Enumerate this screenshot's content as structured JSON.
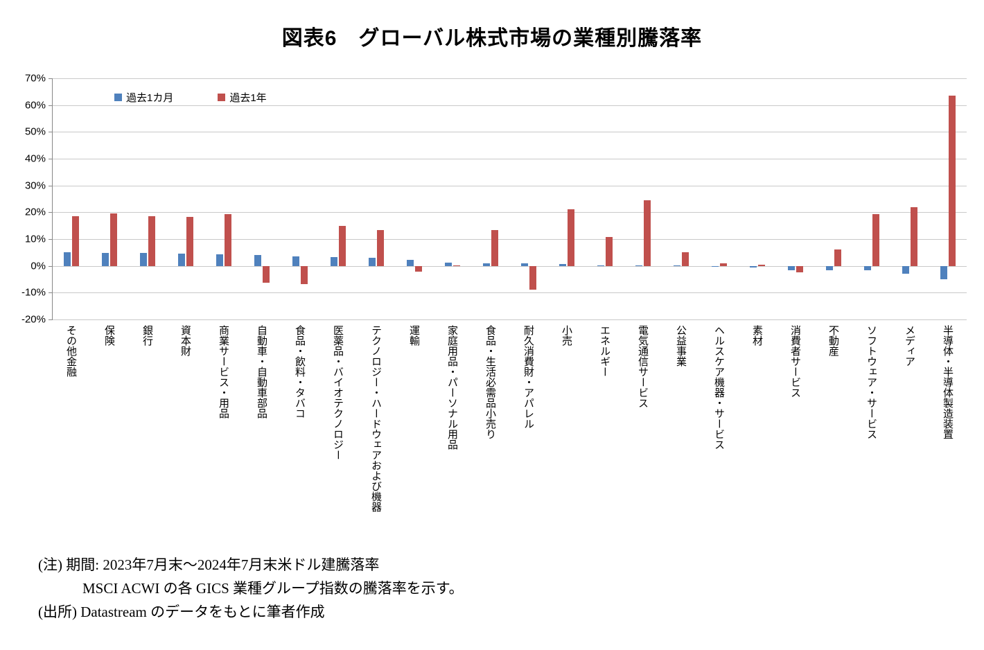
{
  "title": "図表6　グローバル株式市場の業種別騰落率",
  "chart_data": {
    "type": "bar",
    "title": "図表6　グローバル株式市場の業種別騰落率",
    "ylim": [
      -20,
      70
    ],
    "y_ticks": [
      "70%",
      "60%",
      "50%",
      "40%",
      "30%",
      "20%",
      "10%",
      "0%",
      "-10%",
      "-20%"
    ],
    "grid": true,
    "legend_position": "top-left-inside",
    "categories": [
      "その他金融",
      "保険",
      "銀行",
      "資本財",
      "商業サービス・用品",
      "自動車・自動車部品",
      "食品・飲料・タバコ",
      "医薬品・バイオテクノロジー",
      "テクノロジー・ハードウェアおよび機器",
      "運輸",
      "家庭用品・パーソナル用品",
      "食品・生活必需品小売り",
      "耐久消費財・アパレル",
      "小売",
      "エネルギー",
      "電気通信サービス",
      "公益事業",
      "ヘルスケア機器・サービス",
      "素材",
      "消費者サービス",
      "不動産",
      "ソフトウェア・サービス",
      "メディア",
      "半導体・半導体製造装置"
    ],
    "series": [
      {
        "name": "過去1カ月",
        "color": "#4F81BD",
        "values": [
          5.2,
          4.8,
          4.7,
          4.5,
          4.3,
          4.1,
          3.6,
          3.2,
          3.0,
          2.2,
          1.1,
          1.0,
          0.9,
          0.7,
          0.3,
          0.2,
          0.1,
          -0.4,
          -0.5,
          -1.6,
          -1.6,
          -1.7,
          -3.0,
          -4.9
        ]
      },
      {
        "name": "過去1年",
        "color": "#C0504D",
        "values": [
          18.6,
          19.5,
          18.6,
          18.3,
          19.2,
          -6.2,
          -6.7,
          15.0,
          13.4,
          -2.2,
          0.2,
          13.4,
          -9.0,
          21.2,
          10.8,
          24.6,
          5.2,
          0.9,
          0.4,
          -2.5,
          6.0,
          19.2,
          21.8,
          63.5
        ]
      }
    ]
  },
  "notes": {
    "line1": "(注) 期間: 2023年7月末～2024年7月末米ドル建騰落率",
    "line2": "MSCI ACWI の各 GICS 業種グループ指数の騰落率を示す。",
    "line3": "(出所) Datastream のデータをもとに筆者作成"
  }
}
